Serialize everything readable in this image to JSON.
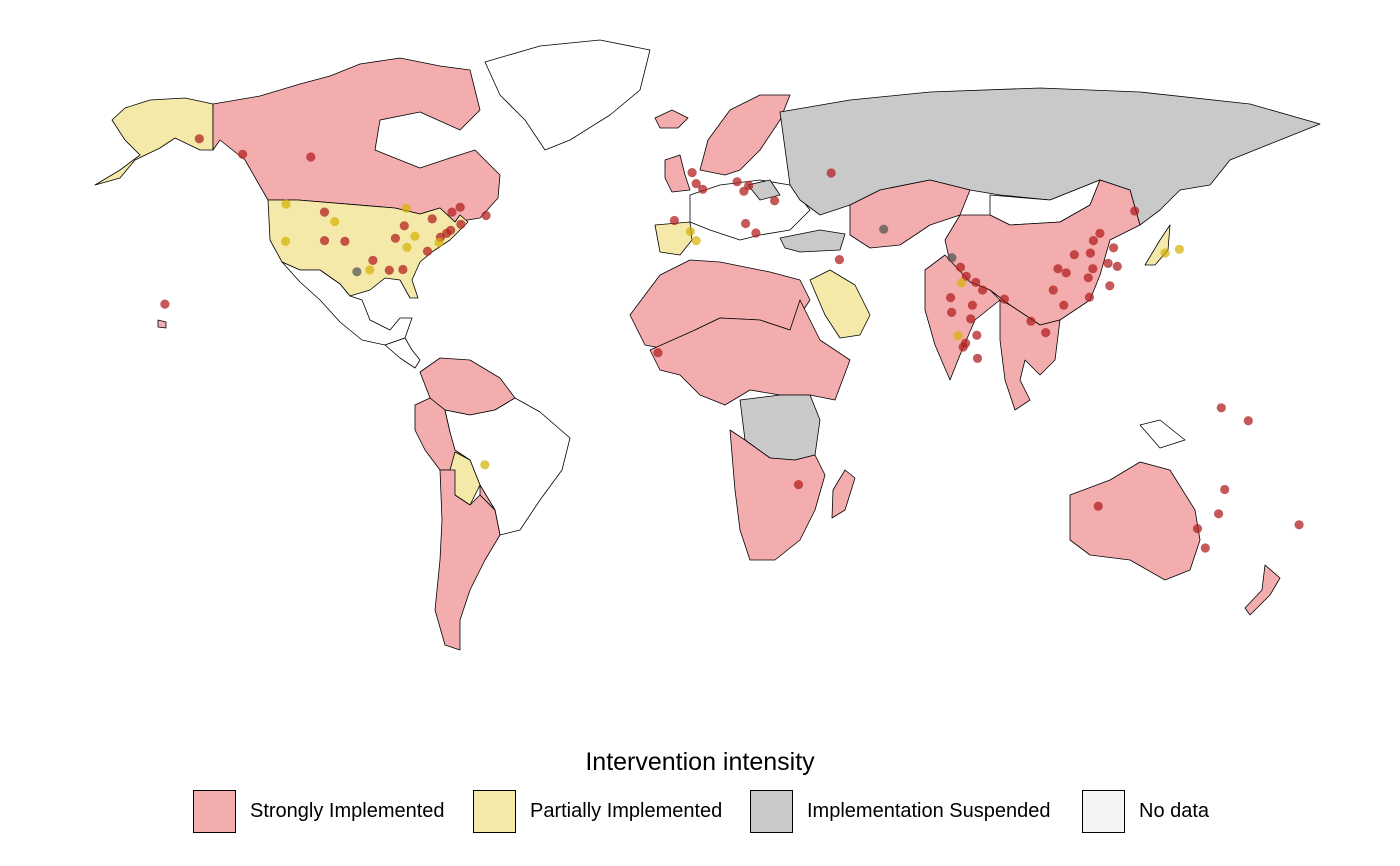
{
  "legend": {
    "title": "Intervention intensity",
    "items": [
      {
        "key": "strong",
        "label": "Strongly Implemented",
        "color": "#f4adaf"
      },
      {
        "key": "partial",
        "label": "Partially Implemented",
        "color": "#f5e9a9"
      },
      {
        "key": "suspended",
        "label": "Implementation Suspended",
        "color": "#c9c9c9"
      },
      {
        "key": "nodata",
        "label": "No data",
        "color": "#f4f4f4"
      }
    ]
  },
  "marker_colors": {
    "strong": "#b22222",
    "partial": "#d4b000",
    "suspended": "#555555"
  },
  "regions": [
    {
      "name": "Alaska",
      "status": "partial"
    },
    {
      "name": "Canada",
      "status": "strong"
    },
    {
      "name": "Greenland",
      "status": "nodata"
    },
    {
      "name": "United States",
      "status": "partial"
    },
    {
      "name": "Mexico",
      "status": "nodata"
    },
    {
      "name": "Central America",
      "status": "nodata"
    },
    {
      "name": "Colombia / Venezuela",
      "status": "strong"
    },
    {
      "name": "Ecuador / Peru",
      "status": "strong"
    },
    {
      "name": "Brazil",
      "status": "nodata"
    },
    {
      "name": "Bolivia",
      "status": "partial"
    },
    {
      "name": "Argentina / Chile",
      "status": "strong"
    },
    {
      "name": "Paraguay",
      "status": "strong"
    },
    {
      "name": "Iceland",
      "status": "strong"
    },
    {
      "name": "Scandinavia",
      "status": "strong"
    },
    {
      "name": "United Kingdom",
      "status": "strong"
    },
    {
      "name": "Iberia",
      "status": "partial"
    },
    {
      "name": "Western Europe",
      "status": "nodata"
    },
    {
      "name": "Belarus",
      "status": "suspended"
    },
    {
      "name": "Russia",
      "status": "suspended"
    },
    {
      "name": "Turkey",
      "status": "suspended"
    },
    {
      "name": "Saudi Arabia",
      "status": "partial"
    },
    {
      "name": "North Africa",
      "status": "strong"
    },
    {
      "name": "Sahel / Central Africa",
      "status": "strong"
    },
    {
      "name": "Central African Basin",
      "status": "suspended"
    },
    {
      "name": "Southern Africa",
      "status": "strong"
    },
    {
      "name": "Madagascar",
      "status": "strong"
    },
    {
      "name": "Kazakhstan / Central Asia",
      "status": "strong"
    },
    {
      "name": "Mongolia",
      "status": "nodata"
    },
    {
      "name": "China",
      "status": "strong"
    },
    {
      "name": "India",
      "status": "strong"
    },
    {
      "name": "Southeast Asia",
      "status": "strong"
    },
    {
      "name": "Japan",
      "status": "partial"
    },
    {
      "name": "Australia",
      "status": "strong"
    },
    {
      "name": "New Zealand",
      "status": "strong"
    },
    {
      "name": "Papua New Guinea",
      "status": "nodata"
    },
    {
      "name": "Hawaii",
      "status": "strong"
    }
  ],
  "sites": [
    {
      "lat": 64.8,
      "lon": -147.7,
      "status": "strong"
    },
    {
      "lat": 60.7,
      "lon": -135.0,
      "status": "strong"
    },
    {
      "lat": 60.0,
      "lon": -115.0,
      "status": "strong"
    },
    {
      "lat": 47.6,
      "lon": -122.3,
      "status": "partial"
    },
    {
      "lat": 45.5,
      "lon": -111.0,
      "status": "strong"
    },
    {
      "lat": 46.5,
      "lon": -87.0,
      "status": "partial"
    },
    {
      "lat": 43.7,
      "lon": -79.4,
      "status": "strong"
    },
    {
      "lat": 45.5,
      "lon": -73.6,
      "status": "strong"
    },
    {
      "lat": 46.8,
      "lon": -71.2,
      "status": "strong"
    },
    {
      "lat": 44.6,
      "lon": -63.6,
      "status": "strong"
    },
    {
      "lat": 42.3,
      "lon": -71.0,
      "status": "strong"
    },
    {
      "lat": 40.7,
      "lon": -74.0,
      "status": "strong"
    },
    {
      "lat": 39.9,
      "lon": -75.2,
      "status": "strong"
    },
    {
      "lat": 38.9,
      "lon": -77.0,
      "status": "strong"
    },
    {
      "lat": 41.9,
      "lon": -87.6,
      "status": "strong"
    },
    {
      "lat": 39.1,
      "lon": -84.5,
      "status": "partial"
    },
    {
      "lat": 37.5,
      "lon": -77.4,
      "status": "partial"
    },
    {
      "lat": 35.2,
      "lon": -80.8,
      "status": "strong"
    },
    {
      "lat": 43.0,
      "lon": -108.0,
      "status": "partial"
    },
    {
      "lat": 38.0,
      "lon": -111.0,
      "status": "strong"
    },
    {
      "lat": 37.8,
      "lon": -122.4,
      "status": "partial"
    },
    {
      "lat": 37.8,
      "lon": -105.0,
      "status": "strong"
    },
    {
      "lat": 38.6,
      "lon": -90.2,
      "status": "strong"
    },
    {
      "lat": 36.2,
      "lon": -86.8,
      "status": "partial"
    },
    {
      "lat": 32.8,
      "lon": -96.8,
      "status": "strong"
    },
    {
      "lat": 30.3,
      "lon": -97.7,
      "status": "partial"
    },
    {
      "lat": 30.2,
      "lon": -92.0,
      "status": "strong"
    },
    {
      "lat": 30.4,
      "lon": -88.0,
      "status": "strong"
    },
    {
      "lat": 29.8,
      "lon": -101.5,
      "status": "suspended"
    },
    {
      "lat": 21.3,
      "lon": -157.8,
      "status": "strong"
    },
    {
      "lat": -21.0,
      "lon": -64.0,
      "status": "partial"
    },
    {
      "lat": 55.9,
      "lon": -3.2,
      "status": "strong"
    },
    {
      "lat": 53.0,
      "lon": -2.0,
      "status": "strong"
    },
    {
      "lat": 51.5,
      "lon": -0.1,
      "status": "strong"
    },
    {
      "lat": 53.5,
      "lon": 10.0,
      "status": "strong"
    },
    {
      "lat": 52.5,
      "lon": 13.4,
      "status": "strong"
    },
    {
      "lat": 51.0,
      "lon": 12.0,
      "status": "strong"
    },
    {
      "lat": 55.8,
      "lon": 37.6,
      "status": "strong"
    },
    {
      "lat": 48.5,
      "lon": 21.0,
      "status": "strong"
    },
    {
      "lat": 43.3,
      "lon": -8.4,
      "status": "strong"
    },
    {
      "lat": 40.4,
      "lon": -3.7,
      "status": "partial"
    },
    {
      "lat": 38.0,
      "lon": -2.0,
      "status": "partial"
    },
    {
      "lat": 42.5,
      "lon": 12.5,
      "status": "strong"
    },
    {
      "lat": 40.0,
      "lon": 15.5,
      "status": "strong"
    },
    {
      "lat": 41.0,
      "lon": 53.0,
      "status": "suspended"
    },
    {
      "lat": 33.0,
      "lon": 40.0,
      "status": "strong"
    },
    {
      "lat": 8.5,
      "lon": -13.2,
      "status": "strong"
    },
    {
      "lat": -26.2,
      "lon": 28.0,
      "status": "strong"
    },
    {
      "lat": 33.5,
      "lon": 73.0,
      "status": "suspended"
    },
    {
      "lat": 31.0,
      "lon": 75.5,
      "status": "strong"
    },
    {
      "lat": 28.6,
      "lon": 77.2,
      "status": "strong"
    },
    {
      "lat": 27.0,
      "lon": 80.0,
      "status": "strong"
    },
    {
      "lat": 26.9,
      "lon": 75.8,
      "status": "partial"
    },
    {
      "lat": 25.0,
      "lon": 82.0,
      "status": "strong"
    },
    {
      "lat": 22.6,
      "lon": 88.4,
      "status": "strong"
    },
    {
      "lat": 23.0,
      "lon": 72.6,
      "status": "strong"
    },
    {
      "lat": 21.0,
      "lon": 79.0,
      "status": "strong"
    },
    {
      "lat": 19.1,
      "lon": 72.9,
      "status": "strong"
    },
    {
      "lat": 17.4,
      "lon": 78.5,
      "status": "strong"
    },
    {
      "lat": 13.0,
      "lon": 74.8,
      "status": "partial"
    },
    {
      "lat": 13.1,
      "lon": 80.3,
      "status": "strong"
    },
    {
      "lat": 11.0,
      "lon": 77.0,
      "status": "strong"
    },
    {
      "lat": 10.0,
      "lon": 76.3,
      "status": "strong"
    },
    {
      "lat": 7.0,
      "lon": 80.5,
      "status": "strong"
    },
    {
      "lat": 39.9,
      "lon": 116.4,
      "status": "strong"
    },
    {
      "lat": 45.8,
      "lon": 126.6,
      "status": "strong"
    },
    {
      "lat": 38.0,
      "lon": 114.5,
      "status": "strong"
    },
    {
      "lat": 34.3,
      "lon": 108.9,
      "status": "strong"
    },
    {
      "lat": 30.6,
      "lon": 104.1,
      "status": "strong"
    },
    {
      "lat": 29.5,
      "lon": 106.5,
      "status": "strong"
    },
    {
      "lat": 30.6,
      "lon": 114.3,
      "status": "strong"
    },
    {
      "lat": 31.2,
      "lon": 121.5,
      "status": "strong"
    },
    {
      "lat": 32.0,
      "lon": 118.8,
      "status": "strong"
    },
    {
      "lat": 28.2,
      "lon": 113.0,
      "status": "strong"
    },
    {
      "lat": 26.1,
      "lon": 119.3,
      "status": "strong"
    },
    {
      "lat": 23.1,
      "lon": 113.3,
      "status": "strong"
    },
    {
      "lat": 25.0,
      "lon": 102.7,
      "status": "strong"
    },
    {
      "lat": 36.1,
      "lon": 120.4,
      "status": "strong"
    },
    {
      "lat": 34.7,
      "lon": 113.6,
      "status": "strong"
    },
    {
      "lat": 21.0,
      "lon": 105.8,
      "status": "strong"
    },
    {
      "lat": 16.8,
      "lon": 96.2,
      "status": "strong"
    },
    {
      "lat": 13.8,
      "lon": 100.5,
      "status": "strong"
    },
    {
      "lat": 35.7,
      "lon": 139.7,
      "status": "partial"
    },
    {
      "lat": 34.7,
      "lon": 135.5,
      "status": "partial"
    },
    {
      "lat": -6.0,
      "lon": 152.0,
      "status": "strong"
    },
    {
      "lat": -9.4,
      "lon": 159.9,
      "status": "strong"
    },
    {
      "lat": -31.9,
      "lon": 115.9,
      "status": "strong"
    },
    {
      "lat": -27.5,
      "lon": 153.0,
      "status": "strong"
    },
    {
      "lat": -33.9,
      "lon": 151.2,
      "status": "strong"
    },
    {
      "lat": -37.8,
      "lon": 145.0,
      "status": "strong"
    },
    {
      "lat": -42.9,
      "lon": 147.3,
      "status": "strong"
    },
    {
      "lat": -36.8,
      "lon": 174.8,
      "status": "strong"
    }
  ]
}
